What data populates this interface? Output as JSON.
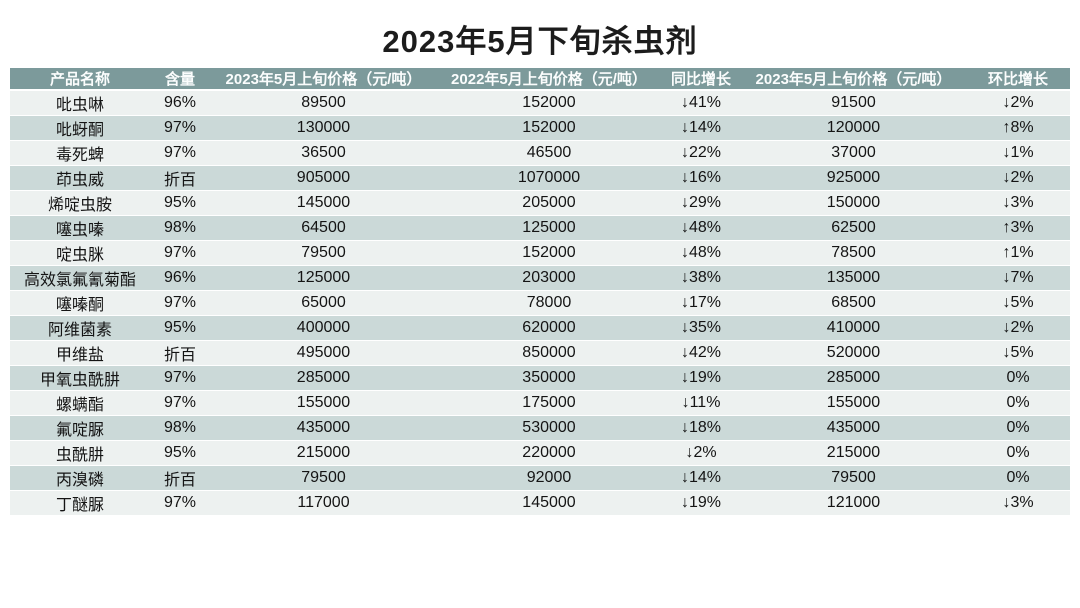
{
  "title": "2023年5月下旬杀虫剂",
  "colors": {
    "header_bg": "#7c9a9b",
    "row_light": "#edf1f0",
    "row_dark": "#cbd9d8",
    "header_text": "#fbfdfd",
    "cell_text": "#141414"
  },
  "chart_data": {
    "type": "table",
    "title": "2023年5月下旬杀虫剂",
    "columns": [
      "产品名称",
      "含量",
      "2023年5月上旬价格（元/吨）",
      "2022年5月上旬价格（元/吨）",
      "同比增长",
      "2023年5月上旬价格（元/吨）",
      "环比增长"
    ],
    "col_names": [
      "product-name-cell",
      "content-cell",
      "price-2023-cell",
      "price-2022-cell",
      "yoy-change-cell",
      "price-2023b-cell",
      "mom-change-cell"
    ],
    "rows": [
      [
        "吡虫啉",
        "96%",
        "89500",
        "152000",
        "↓41%",
        "91500",
        "↓2%"
      ],
      [
        "吡蚜酮",
        "97%",
        "130000",
        "152000",
        "↓14%",
        "120000",
        "↑8%"
      ],
      [
        "毒死蜱",
        "97%",
        "36500",
        "46500",
        "↓22%",
        "37000",
        "↓1%"
      ],
      [
        "茚虫威",
        "折百",
        "905000",
        "1070000",
        "↓16%",
        "925000",
        "↓2%"
      ],
      [
        "烯啶虫胺",
        "95%",
        "145000",
        "205000",
        "↓29%",
        "150000",
        "↓3%"
      ],
      [
        "噻虫嗪",
        "98%",
        "64500",
        "125000",
        "↓48%",
        "62500",
        "↑3%"
      ],
      [
        "啶虫脒",
        "97%",
        "79500",
        "152000",
        "↓48%",
        "78500",
        "↑1%"
      ],
      [
        "高效氯氟氰菊酯",
        "96%",
        "125000",
        "203000",
        "↓38%",
        "135000",
        "↓7%"
      ],
      [
        "噻嗪酮",
        "97%",
        "65000",
        "78000",
        "↓17%",
        "68500",
        "↓5%"
      ],
      [
        "阿维菌素",
        "95%",
        "400000",
        "620000",
        "↓35%",
        "410000",
        "↓2%"
      ],
      [
        "甲维盐",
        "折百",
        "495000",
        "850000",
        "↓42%",
        "520000",
        "↓5%"
      ],
      [
        "甲氧虫酰肼",
        "97%",
        "285000",
        "350000",
        "↓19%",
        "285000",
        "0%"
      ],
      [
        "螺螨酯",
        "97%",
        "155000",
        "175000",
        "↓11%",
        "155000",
        "0%"
      ],
      [
        "氟啶脲",
        "98%",
        "435000",
        "530000",
        "↓18%",
        "435000",
        "0%"
      ],
      [
        "虫酰肼",
        "95%",
        "215000",
        "220000",
        "↓2%",
        "215000",
        "0%"
      ],
      [
        "丙溴磷",
        "折百",
        "79500",
        "92000",
        "↓14%",
        "79500",
        "0%"
      ],
      [
        "丁醚脲",
        "97%",
        "117000",
        "145000",
        "↓19%",
        "121000",
        "↓3%"
      ]
    ]
  }
}
